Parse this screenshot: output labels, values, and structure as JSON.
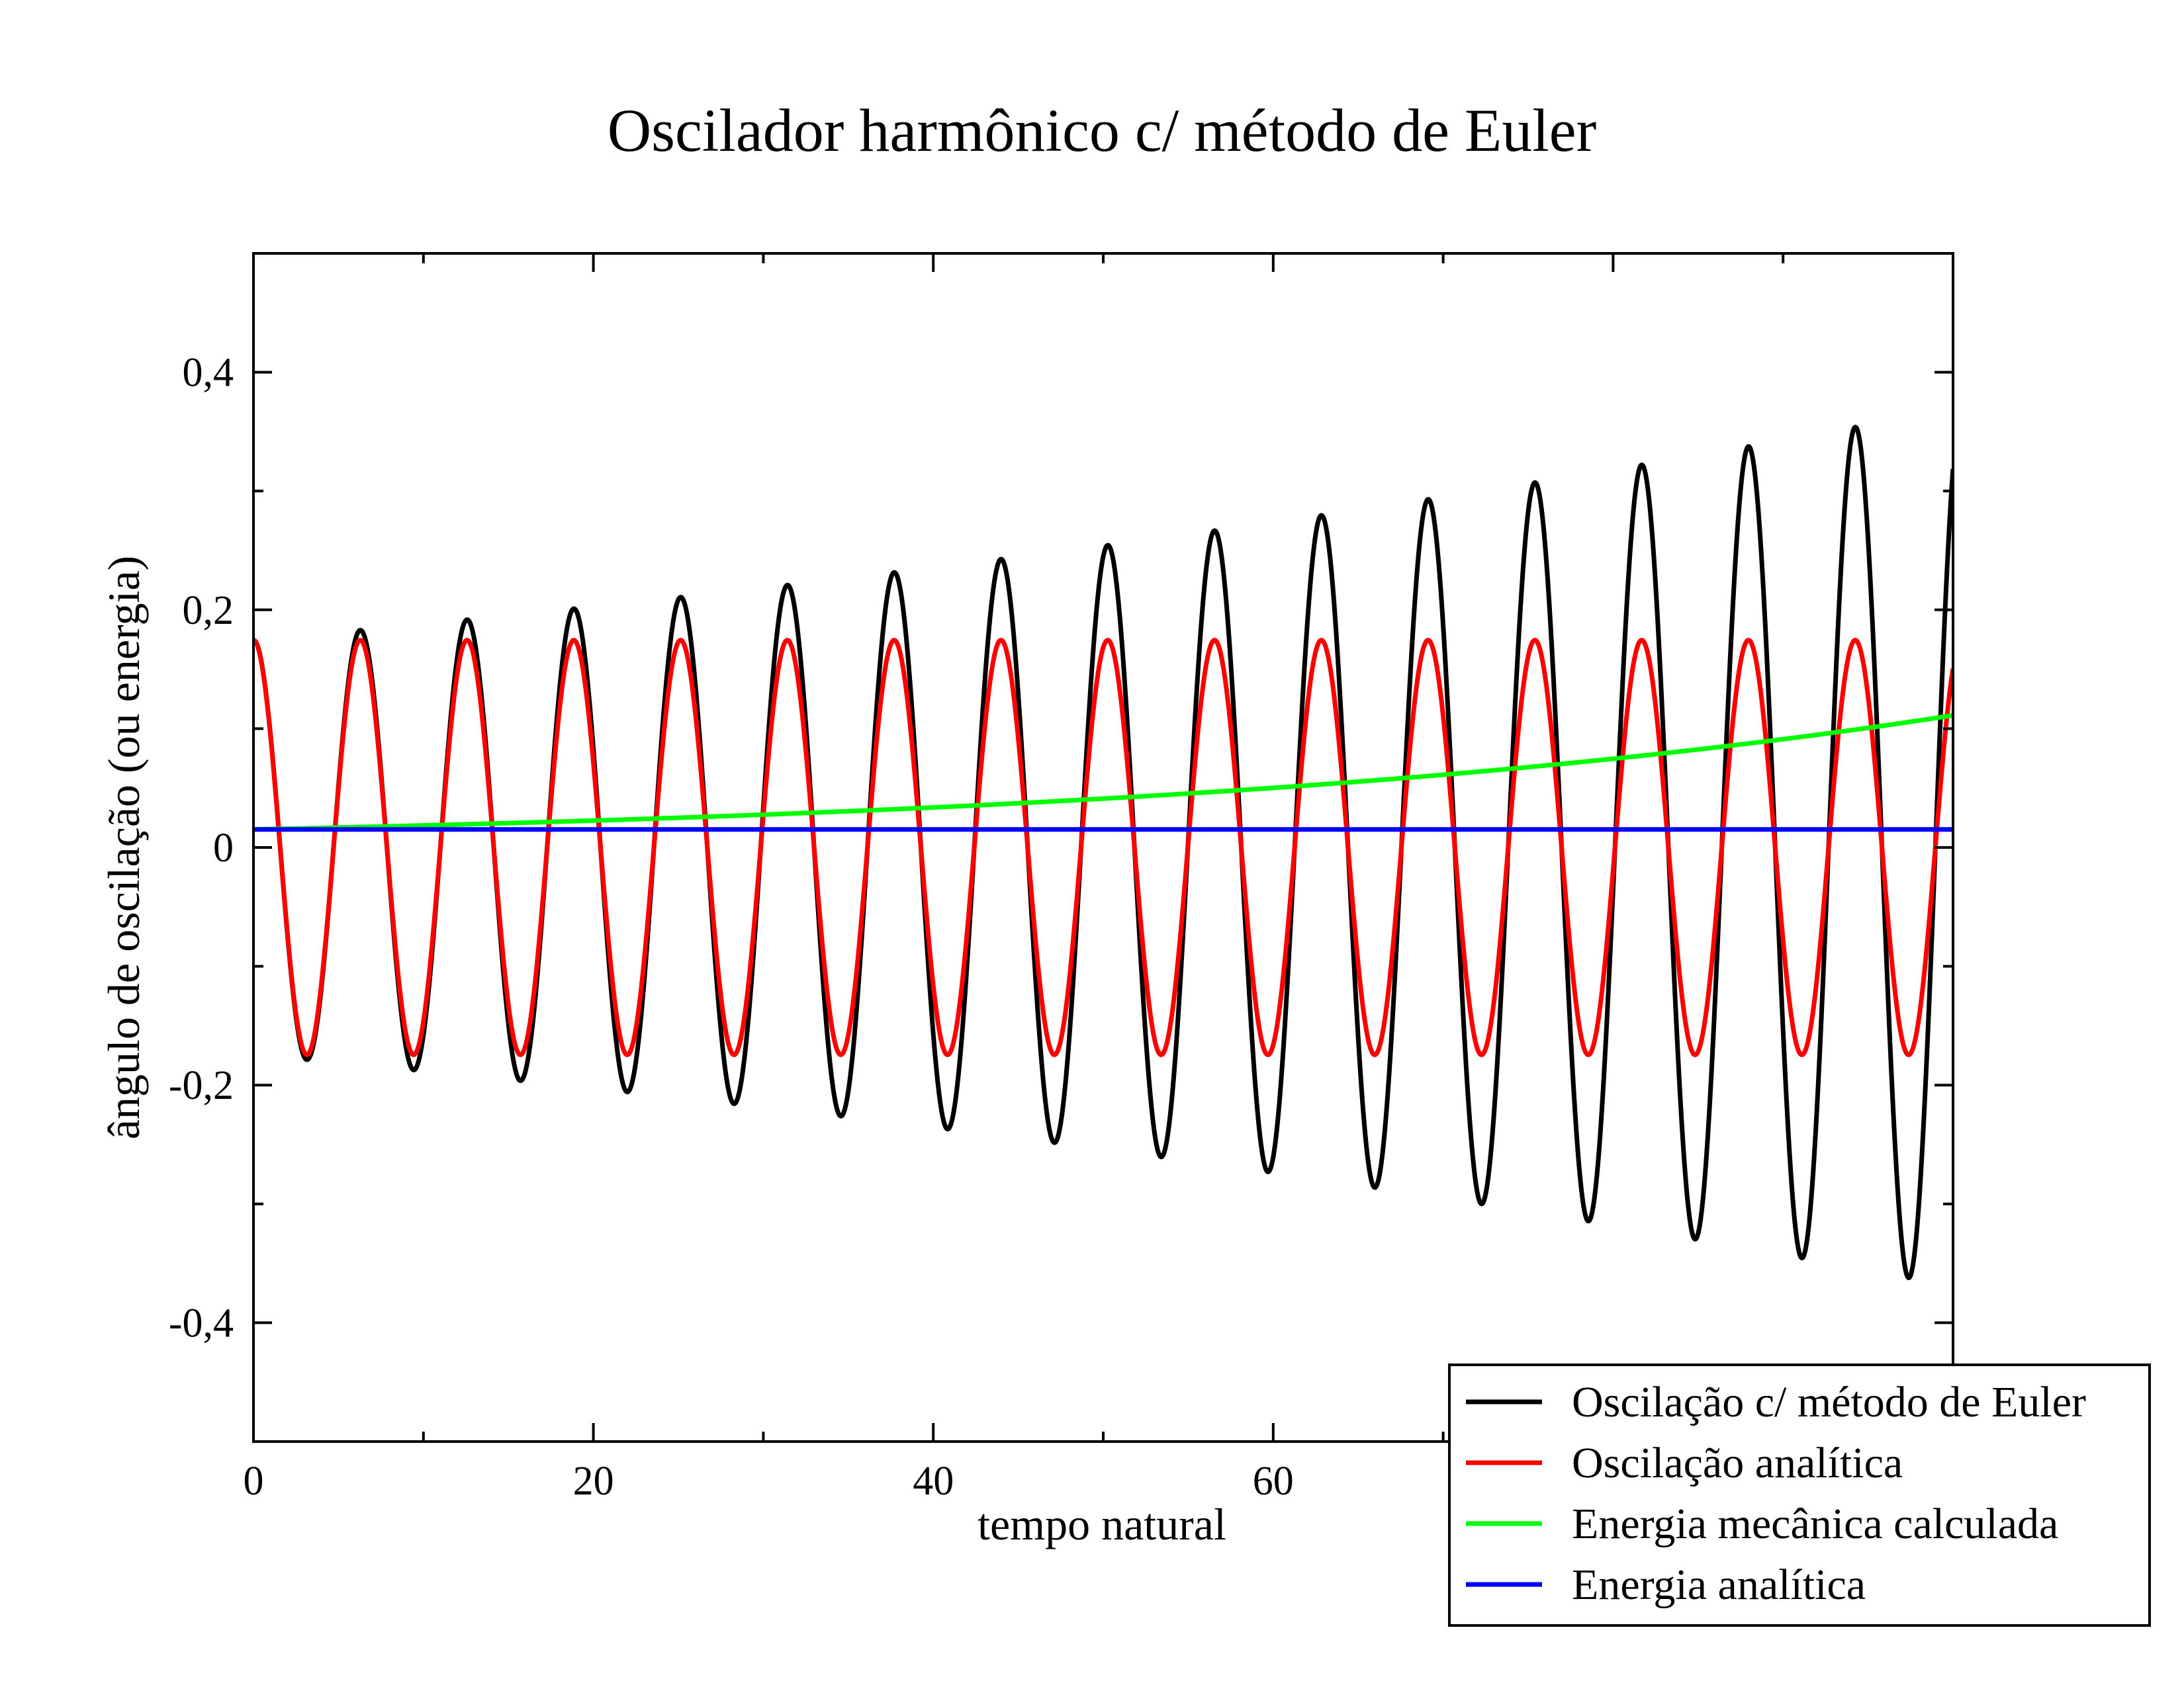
{
  "chart_data": {
    "type": "line",
    "title": "Oscilador harmônico c/ método de Euler",
    "xlabel": "tempo natural",
    "ylabel": "ângulo de oscilação (ou energia)",
    "xlim": [
      0,
      100
    ],
    "ylim": [
      -0.5,
      0.5
    ],
    "x_ticks": [
      0,
      20,
      40,
      60,
      80,
      100
    ],
    "x_tick_labels": [
      "0",
      "20",
      "40",
      "60",
      "",
      ""
    ],
    "x_minor_step": 10,
    "y_ticks": [
      -0.4,
      -0.2,
      0,
      0.2,
      0.4
    ],
    "y_tick_labels": [
      "-0,4",
      "-0,2",
      "0",
      "0,2",
      "0,4"
    ],
    "y_minor_step": 0.1,
    "grid": false,
    "legend_position": "bottom-right",
    "series": [
      {
        "name": "Oscilação c/ método de Euler",
        "color": "#000000",
        "function": "euler_oscillation",
        "x_range": [
          0,
          100
        ],
        "angular_frequency": 1.0,
        "initial_amplitude": 0.1745,
        "growth_rate": 0.0075
      },
      {
        "name": "Oscilação analítica",
        "color": "#ff0000",
        "function": "analytic_oscillation",
        "x_range": [
          0,
          100
        ],
        "angular_frequency": 1.0,
        "amplitude": 0.1745
      },
      {
        "name": "Energia mecânica calculada",
        "color": "#00ff00",
        "function": "euler_energy",
        "x_range": [
          0,
          100
        ],
        "initial_value": 0.0152,
        "growth_rate": 0.0199
      },
      {
        "name": "Energia analítica",
        "color": "#0000ff",
        "function": "constant",
        "x_range": [
          0,
          100
        ],
        "value": 0.0152
      }
    ]
  }
}
